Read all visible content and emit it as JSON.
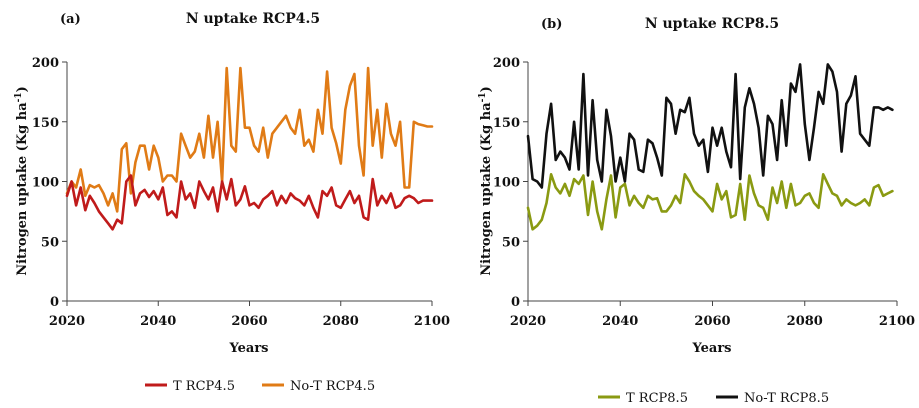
{
  "chart_data": [
    {
      "type": "line",
      "panel_label": "(a)",
      "title": "N uptake RCP4.5",
      "xlabel": "Years",
      "ylabel_main": "Nitrogen uptake (Kg ha",
      "ylabel_sup": "-1",
      "ylabel_close": ")",
      "xlim": [
        2020,
        2100
      ],
      "ylim": [
        0,
        200
      ],
      "xticks": [
        2020,
        2040,
        2060,
        2080,
        2100
      ],
      "yticks": [
        0,
        50,
        100,
        150,
        200
      ],
      "x": [
        2020,
        2021,
        2022,
        2023,
        2024,
        2025,
        2026,
        2027,
        2028,
        2029,
        2030,
        2031,
        2032,
        2033,
        2034,
        2035,
        2036,
        2037,
        2038,
        2039,
        2040,
        2041,
        2042,
        2043,
        2044,
        2045,
        2046,
        2047,
        2048,
        2049,
        2050,
        2051,
        2052,
        2053,
        2054,
        2055,
        2056,
        2057,
        2058,
        2059,
        2060,
        2061,
        2062,
        2063,
        2064,
        2065,
        2066,
        2067,
        2068,
        2069,
        2070,
        2071,
        2072,
        2073,
        2074,
        2075,
        2076,
        2077,
        2078,
        2079,
        2080,
        2081,
        2082,
        2083,
        2084,
        2085,
        2086,
        2087,
        2088,
        2089,
        2090,
        2091,
        2092,
        2093,
        2094,
        2095,
        2096,
        2097,
        2098,
        2099,
        2100
      ],
      "series": [
        {
          "name": "T RCP4.5",
          "color": "#c01b1b",
          "values": [
            88,
            100,
            80,
            95,
            76,
            88,
            82,
            75,
            70,
            65,
            60,
            68,
            65,
            100,
            105,
            80,
            90,
            93,
            87,
            92,
            85,
            95,
            72,
            75,
            70,
            100,
            85,
            90,
            78,
            100,
            92,
            85,
            95,
            75,
            100,
            85,
            102,
            80,
            85,
            96,
            80,
            82,
            78,
            85,
            88,
            92,
            80,
            88,
            82,
            90,
            86,
            84,
            80,
            88,
            78,
            70,
            92,
            88,
            95,
            80,
            78,
            85,
            92,
            82,
            88,
            70,
            68,
            102,
            80,
            88,
            82,
            90,
            78,
            80,
            86,
            88,
            86,
            82,
            84,
            84,
            84
          ]
        },
        {
          "name": "No-T RCP4.5",
          "color": "#e07b16",
          "values": [
            90,
            100,
            95,
            110,
            88,
            97,
            95,
            97,
            90,
            80,
            90,
            75,
            127,
            132,
            90,
            116,
            130,
            130,
            110,
            130,
            120,
            100,
            105,
            105,
            100,
            140,
            130,
            120,
            125,
            140,
            120,
            155,
            120,
            150,
            100,
            195,
            130,
            125,
            195,
            145,
            145,
            130,
            125,
            145,
            120,
            140,
            145,
            150,
            155,
            145,
            140,
            160,
            130,
            135,
            125,
            160,
            140,
            192,
            145,
            132,
            115,
            160,
            180,
            190,
            130,
            105,
            195,
            130,
            160,
            120,
            165,
            140,
            130,
            150,
            95,
            95,
            150,
            148,
            147,
            146,
            146
          ]
        }
      ]
    },
    {
      "type": "line",
      "panel_label": "(b)",
      "title": "N uptake RCP8.5",
      "xlabel": "Years",
      "ylabel_main": "Nitrogen uptake (Kg ha",
      "ylabel_sup": "-1",
      "ylabel_close": ")",
      "xlim": [
        2020,
        2100
      ],
      "ylim": [
        0,
        200
      ],
      "xticks": [
        2020,
        2040,
        2060,
        2080,
        2100
      ],
      "yticks": [
        0,
        50,
        100,
        150,
        200
      ],
      "x": [
        2020,
        2021,
        2022,
        2023,
        2024,
        2025,
        2026,
        2027,
        2028,
        2029,
        2030,
        2031,
        2032,
        2033,
        2034,
        2035,
        2036,
        2037,
        2038,
        2039,
        2040,
        2041,
        2042,
        2043,
        2044,
        2045,
        2046,
        2047,
        2048,
        2049,
        2050,
        2051,
        2052,
        2053,
        2054,
        2055,
        2056,
        2057,
        2058,
        2059,
        2060,
        2061,
        2062,
        2063,
        2064,
        2065,
        2066,
        2067,
        2068,
        2069,
        2070,
        2071,
        2072,
        2073,
        2074,
        2075,
        2076,
        2077,
        2078,
        2079,
        2080,
        2081,
        2082,
        2083,
        2084,
        2085,
        2086,
        2087,
        2088,
        2089,
        2090,
        2091,
        2092,
        2093,
        2094,
        2095,
        2096,
        2097,
        2098,
        2099
      ],
      "series": [
        {
          "name": "T RCP8.5",
          "color": "#8a9a12",
          "values": [
            78,
            60,
            63,
            68,
            82,
            106,
            95,
            90,
            98,
            88,
            102,
            98,
            105,
            72,
            100,
            75,
            60,
            85,
            105,
            70,
            95,
            98,
            80,
            88,
            82,
            78,
            88,
            85,
            86,
            75,
            75,
            80,
            88,
            82,
            106,
            100,
            92,
            88,
            85,
            80,
            75,
            98,
            85,
            92,
            70,
            72,
            98,
            68,
            105,
            90,
            80,
            78,
            68,
            95,
            82,
            100,
            78,
            98,
            80,
            82,
            88,
            90,
            82,
            78,
            106,
            98,
            90,
            88,
            80,
            85,
            82,
            80,
            82,
            85,
            80,
            95,
            97,
            88,
            90,
            92
          ]
        },
        {
          "name": "No-T RCP8.5",
          "color": "#111111",
          "values": [
            138,
            102,
            100,
            95,
            140,
            165,
            118,
            125,
            120,
            110,
            150,
            110,
            190,
            105,
            168,
            118,
            100,
            160,
            138,
            100,
            120,
            100,
            140,
            135,
            110,
            108,
            135,
            132,
            120,
            105,
            170,
            165,
            140,
            160,
            158,
            170,
            140,
            130,
            135,
            108,
            145,
            130,
            145,
            125,
            112,
            190,
            102,
            162,
            178,
            165,
            145,
            105,
            155,
            148,
            118,
            168,
            130,
            182,
            175,
            198,
            148,
            118,
            145,
            175,
            165,
            198,
            192,
            175,
            125,
            165,
            172,
            188,
            140,
            135,
            130,
            162,
            162,
            160,
            162,
            160
          ]
        }
      ]
    }
  ]
}
